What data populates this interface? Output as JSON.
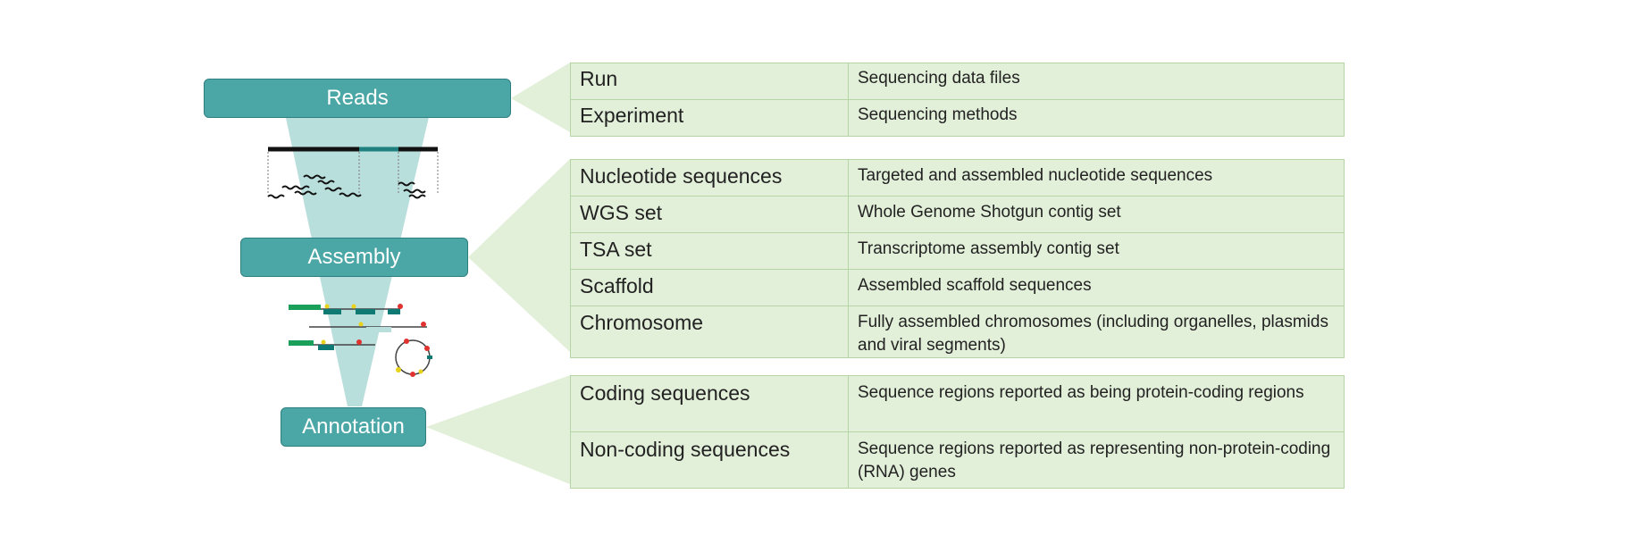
{
  "stages": {
    "reads": "Reads",
    "assembly": "Assembly",
    "annotation": "Annotation"
  },
  "groups": {
    "reads": [
      {
        "name": "Run",
        "description": "Sequencing data files"
      },
      {
        "name": "Experiment",
        "description": "Sequencing methods"
      }
    ],
    "assembly": [
      {
        "name": "Nucleotide sequences",
        "description": "Targeted and assembled nucleotide sequences"
      },
      {
        "name": "WGS set",
        "description": "Whole Genome Shotgun contig set"
      },
      {
        "name": "TSA set",
        "description": "Transcriptome assembly contig set"
      },
      {
        "name": "Scaffold",
        "description": "Assembled scaffold sequences"
      },
      {
        "name": "Chromosome",
        "description": "Fully assembled chromosomes (including organelles, plasmids and viral segments)"
      }
    ],
    "annotation": [
      {
        "name": "Coding sequences",
        "description": "Sequence regions reported as being protein-coding regions"
      },
      {
        "name": "Non-coding sequences",
        "description": "Sequence regions reported as representing non-protein-coding (RNA) genes"
      }
    ]
  },
  "colors": {
    "stage_fill": "#4ba6a6",
    "funnel": "#b9dfdd",
    "table_fill": "#e2efd9",
    "table_border": "#b5d6a4",
    "feature_green": "#1aa05a",
    "feature_teal": "#0f7a73",
    "dot_red": "#e0322f",
    "dot_yellow": "#e8d21a"
  }
}
